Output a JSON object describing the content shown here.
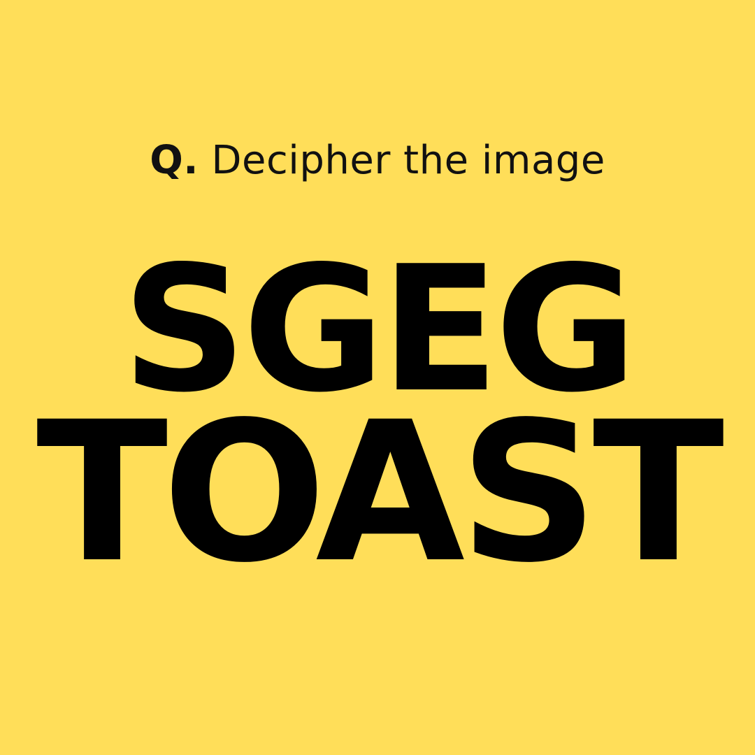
{
  "background_color": "#FFDE59",
  "text_color": "#000000",
  "question": {
    "prefix": "Q.",
    "text": "Decipher the image"
  },
  "puzzle": {
    "line1": "SGEG",
    "line2": "TOAST"
  }
}
